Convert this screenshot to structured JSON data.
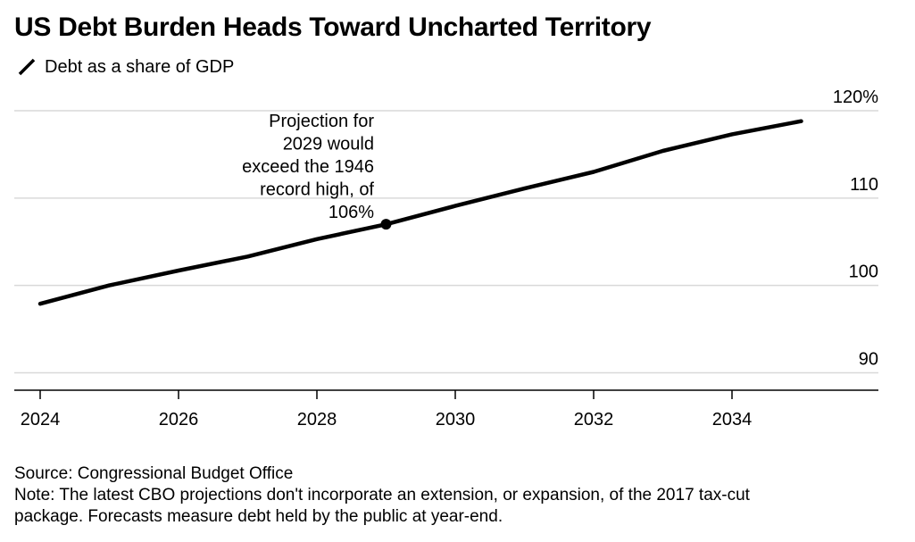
{
  "colors": {
    "line": "#000000",
    "grid": "#d9d9d9",
    "axis": "#000000",
    "text": "#000000"
  },
  "chart_data": {
    "type": "line",
    "title": "US Debt Burden Heads Toward Uncharted Territory",
    "legend": [
      "Debt as a share of GDP"
    ],
    "xlabel": "",
    "ylabel": "",
    "xlim": [
      2023.8,
      2036.2
    ],
    "ylim": [
      88,
      120
    ],
    "y_ticks": [
      {
        "value": 90,
        "label": "90"
      },
      {
        "value": 100,
        "label": "100"
      },
      {
        "value": 110,
        "label": "110"
      },
      {
        "value": 120,
        "label": "120%"
      }
    ],
    "x_ticks": [
      {
        "value": 2024,
        "label": "2024"
      },
      {
        "value": 2026,
        "label": "2026"
      },
      {
        "value": 2028,
        "label": "2028"
      },
      {
        "value": 2030,
        "label": "2030"
      },
      {
        "value": 2032,
        "label": "2032"
      },
      {
        "value": 2034,
        "label": "2034"
      }
    ],
    "series": [
      {
        "name": "Debt as a share of GDP",
        "x": [
          2024,
          2025,
          2026,
          2027,
          2028,
          2029,
          2030,
          2031,
          2032,
          2033,
          2034,
          2035
        ],
        "values": [
          97.9,
          100.0,
          101.7,
          103.3,
          105.3,
          107.0,
          109.1,
          111.1,
          113.0,
          115.4,
          117.3,
          118.8
        ]
      }
    ],
    "annotations": [
      {
        "x": 2029,
        "y": 107.0,
        "lines": [
          "Projection for",
          "2029 would",
          "exceed the 1946",
          "record high, of",
          "106%"
        ]
      }
    ],
    "grid": true,
    "legend_position": "top-left"
  },
  "footer": {
    "source": "Source: Congressional Budget Office",
    "note_line1": "Note: The latest CBO projections don't incorporate an extension, or expansion, of the 2017 tax-cut",
    "note_line2": "package. Forecasts measure debt held by the public at year-end."
  }
}
